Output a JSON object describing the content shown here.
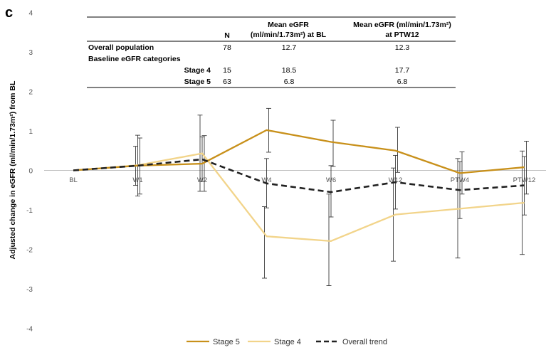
{
  "panel_label": "c",
  "chart_data": {
    "type": "line",
    "xlabel": "",
    "ylabel": "Adjusted change in eGFR (ml/min/1.73m²) from BL",
    "ylim": [
      -4,
      4
    ],
    "yticks": [
      4,
      3,
      2,
      1,
      0,
      -1,
      -2,
      -3,
      -4
    ],
    "categories": [
      "BL",
      "W1",
      "W2",
      "W4",
      "W6",
      "W12",
      "PTW4",
      "PTW12"
    ],
    "series": [
      {
        "name": "Stage 5",
        "color": "#C8901A",
        "style": "solid",
        "values": [
          0,
          0.12,
          0.17,
          1.02,
          0.72,
          0.5,
          -0.07,
          0.08
        ],
        "err_low": [
          0,
          -0.6,
          -0.53,
          0.46,
          0.1,
          -0.05,
          -0.6,
          -0.6
        ],
        "err_high": [
          0,
          0.82,
          0.88,
          1.57,
          1.27,
          1.09,
          0.47,
          0.74
        ]
      },
      {
        "name": "Stage 4",
        "color": "#F2D48A",
        "style": "solid",
        "values": [
          0,
          0.13,
          0.43,
          -1.67,
          -1.79,
          -1.12,
          -0.97,
          -0.82
        ],
        "err_low": [
          0,
          -0.38,
          -0.53,
          -2.73,
          -2.92,
          -2.3,
          -2.22,
          -2.13
        ],
        "err_high": [
          0,
          0.61,
          1.4,
          -0.92,
          -0.6,
          0.06,
          0.3,
          0.49
        ]
      },
      {
        "name": "Overall trend",
        "color": "#222222",
        "style": "dashed",
        "values": [
          0,
          0.12,
          0.28,
          -0.33,
          -0.55,
          -0.3,
          -0.5,
          -0.38
        ],
        "err_low": [
          0,
          -0.65,
          -0.28,
          -0.95,
          -1.18,
          -0.98,
          -1.22,
          -1.13
        ],
        "err_high": [
          0,
          0.89,
          0.85,
          0.3,
          0.12,
          0.38,
          0.22,
          0.35
        ]
      }
    ],
    "legend_position": "bottom",
    "table": {
      "headers": [
        "",
        "N",
        "Mean eGFR (ml/min/1.73m²) at BL",
        "Mean eGFR (ml/min/1.73m²) at PTW12"
      ],
      "header_lines": {
        "n": "N",
        "bl_line1": "Mean eGFR",
        "bl_line2": "(ml/min/1.73m²) at BL",
        "ptw_line1": "Mean eGFR (ml/min/1.73m²)",
        "ptw_line2": "at PTW12"
      },
      "rows": [
        {
          "label": "Overall population",
          "n": "78",
          "bl": "12.7",
          "ptw12": "12.3"
        },
        {
          "label": "Baseline eGFR categories",
          "n": "",
          "bl": "",
          "ptw12": ""
        },
        {
          "label": "Stage 4",
          "n": "15",
          "bl": "18.5",
          "ptw12": "17.7"
        },
        {
          "label": "Stage 5",
          "n": "63",
          "bl": "6.8",
          "ptw12": "6.8"
        }
      ]
    }
  }
}
